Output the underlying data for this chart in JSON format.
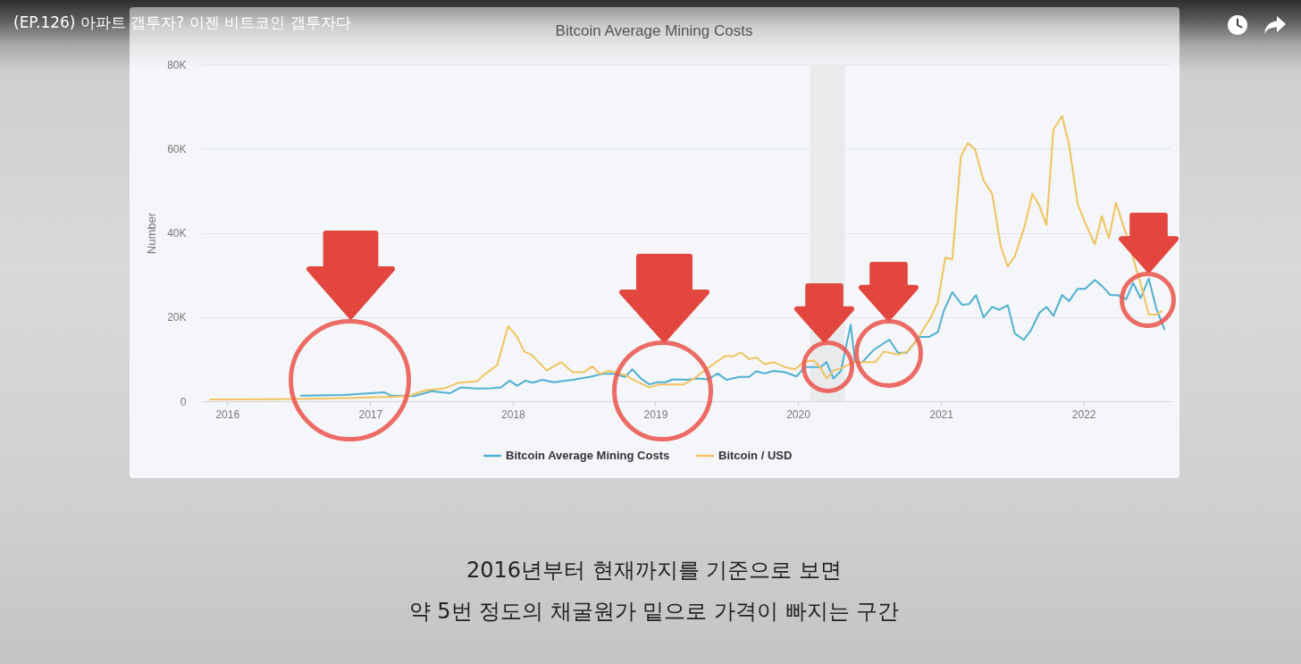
{
  "chart_data": {
    "type": "line",
    "title": "Bitcoin Average Mining Costs",
    "ylabel": "Number",
    "annotations": [
      "(EP.126) 아파트 갭투자? 이젠 비트코인 갭투자다",
      "2016년부터 현재까지를 기준으로 보면",
      "약 5번 정도의 채굴원가 밑으로 가격이 빠지는 구간"
    ],
    "xlim": [
      "2015-10-26",
      "2022-08-14"
    ],
    "xticks": [
      "2016",
      "2017",
      "2018",
      "2019",
      "2020",
      "2021",
      "2022"
    ],
    "ylim": [
      0,
      80000
    ],
    "yticks": [
      0,
      {
        "value": 20000,
        "label": "20K"
      },
      {
        "value": 40000,
        "label": "40K"
      },
      {
        "value": 60000,
        "label": "60K"
      },
      {
        "value": 80000,
        "label": "80K"
      }
    ],
    "grid": "y",
    "legend": "bottom",
    "bands": [
      {
        "axis": "x",
        "from": "2020-02-01",
        "to": "2020-04-30",
        "color": "#e9eaec"
      }
    ],
    "series": [
      {
        "name": "Bitcoin Average Mining Costs",
        "color": "#4fb0d2",
        "x": [
          "2016-07-08",
          "2016-10-23",
          "2017-02-07",
          "2017-02-22",
          "2017-04-23",
          "2017-06-07",
          "2017-07-24",
          "2017-08-22",
          "2017-10-01",
          "2017-11-07",
          "2017-12-02",
          "2017-12-24",
          "2018-01-12",
          "2018-02-03",
          "2018-02-21",
          "2018-03-18",
          "2018-04-16",
          "2018-06-03",
          "2018-07-17",
          "2018-08-19",
          "2018-09-16",
          "2018-10-16",
          "2018-11-03",
          "2018-11-25",
          "2018-12-17",
          "2019-01-05",
          "2019-01-27",
          "2019-02-14",
          "2019-03-22",
          "2019-04-20",
          "2019-05-15",
          "2019-06-10",
          "2019-07-02",
          "2019-08-04",
          "2019-08-29",
          "2019-09-16",
          "2019-10-08",
          "2019-10-31",
          "2019-11-29",
          "2019-12-28",
          "2020-01-19",
          "2020-02-28",
          "2020-03-14",
          "2020-04-01",
          "2020-04-20",
          "2020-05-15",
          "2020-05-26",
          "2020-06-14",
          "2020-07-13",
          "2020-08-22",
          "2020-09-13",
          "2020-10-05",
          "2020-11-07",
          "2020-12-02",
          "2020-12-24",
          "2021-01-08",
          "2021-01-30",
          "2021-02-24",
          "2021-03-14",
          "2021-04-01",
          "2021-04-20",
          "2021-05-12",
          "2021-05-30",
          "2021-06-21",
          "2021-07-09",
          "2021-08-01",
          "2021-08-19",
          "2021-09-10",
          "2021-09-28",
          "2021-10-16",
          "2021-11-07",
          "2021-11-25",
          "2021-12-17",
          "2022-01-05",
          "2022-01-30",
          "2022-02-17",
          "2022-03-11",
          "2022-03-29",
          "2022-04-20",
          "2022-05-08",
          "2022-05-27",
          "2022-06-17",
          "2022-07-06",
          "2022-07-27"
        ],
        "values": [
          1300,
          1500,
          2100,
          1400,
          1200,
          2400,
          1900,
          3300,
          3000,
          3100,
          3300,
          4900,
          3700,
          4900,
          4400,
          5100,
          4500,
          5100,
          5800,
          6500,
          6500,
          5800,
          7600,
          5400,
          4000,
          4500,
          4500,
          5200,
          5100,
          5400,
          5200,
          6600,
          5100,
          5800,
          5800,
          7100,
          6600,
          7200,
          6900,
          5900,
          8100,
          8100,
          9300,
          5400,
          7200,
          18200,
          9300,
          9300,
          12200,
          14600,
          11500,
          11500,
          15300,
          15300,
          16400,
          21400,
          25900,
          22900,
          23100,
          25200,
          19900,
          22400,
          21700,
          22800,
          16100,
          14600,
          16800,
          21000,
          22400,
          20300,
          25200,
          23800,
          26700,
          26700,
          28800,
          27400,
          25200,
          25200,
          24200,
          28100,
          24500,
          29100,
          22100,
          17100
        ]
      },
      {
        "name": "Bitcoin / USD",
        "color": "#f0c35e",
        "x": [
          "2015-11-18",
          "2016-04-15",
          "2016-08-01",
          "2016-11-20",
          "2017-02-05",
          "2017-04-08",
          "2017-05-22",
          "2017-07-08",
          "2017-08-15",
          "2017-10-01",
          "2017-10-23",
          "2017-11-22",
          "2017-12-20",
          "2018-01-12",
          "2018-01-30",
          "2018-02-17",
          "2018-03-29",
          "2018-05-05",
          "2018-06-03",
          "2018-07-02",
          "2018-07-24",
          "2018-08-11",
          "2018-09-06",
          "2018-10-16",
          "2018-11-14",
          "2018-12-17",
          "2019-01-12",
          "2019-03-14",
          "2019-04-12",
          "2019-05-15",
          "2019-06-28",
          "2019-07-20",
          "2019-08-08",
          "2019-08-29",
          "2019-09-16",
          "2019-10-08",
          "2019-10-31",
          "2019-11-29",
          "2019-12-24",
          "2020-01-15",
          "2020-02-10",
          "2020-02-28",
          "2020-03-14",
          "2020-04-01",
          "2020-04-27",
          "2020-05-22",
          "2020-07-17",
          "2020-08-08",
          "2020-09-13",
          "2020-10-08",
          "2020-11-03",
          "2020-12-06",
          "2020-12-24",
          "2021-01-12",
          "2021-01-30",
          "2021-02-21",
          "2021-03-11",
          "2021-03-29",
          "2021-04-20",
          "2021-05-12",
          "2021-06-03",
          "2021-06-21",
          "2021-07-09",
          "2021-08-04",
          "2021-08-23",
          "2021-09-10",
          "2021-09-28",
          "2021-10-16",
          "2021-11-07",
          "2021-11-25",
          "2021-12-17",
          "2022-01-08",
          "2022-01-30",
          "2022-02-17",
          "2022-03-07",
          "2022-03-25",
          "2022-04-20",
          "2022-05-12",
          "2022-05-30",
          "2022-06-17",
          "2022-07-06",
          "2022-07-20"
        ],
        "values": [
          400,
          500,
          600,
          800,
          1000,
          1200,
          2600,
          3000,
          4400,
          4700,
          6500,
          8600,
          17800,
          15300,
          11800,
          11100,
          7300,
          9300,
          6900,
          6900,
          8300,
          6500,
          7200,
          6200,
          4700,
          3300,
          4000,
          4000,
          5500,
          7900,
          10700,
          10700,
          11600,
          10000,
          10400,
          8800,
          9300,
          8100,
          7600,
          9300,
          9700,
          7900,
          5400,
          7300,
          8100,
          9300,
          9300,
          11800,
          11100,
          11800,
          15000,
          19900,
          23500,
          34100,
          33700,
          58100,
          61300,
          59900,
          52400,
          49300,
          36900,
          32000,
          34400,
          41800,
          49300,
          46400,
          41800,
          64500,
          67700,
          60900,
          46800,
          41800,
          37300,
          44000,
          38700,
          47100,
          39700,
          32700,
          27000,
          20600,
          20600,
          21400
        ]
      }
    ]
  }
}
